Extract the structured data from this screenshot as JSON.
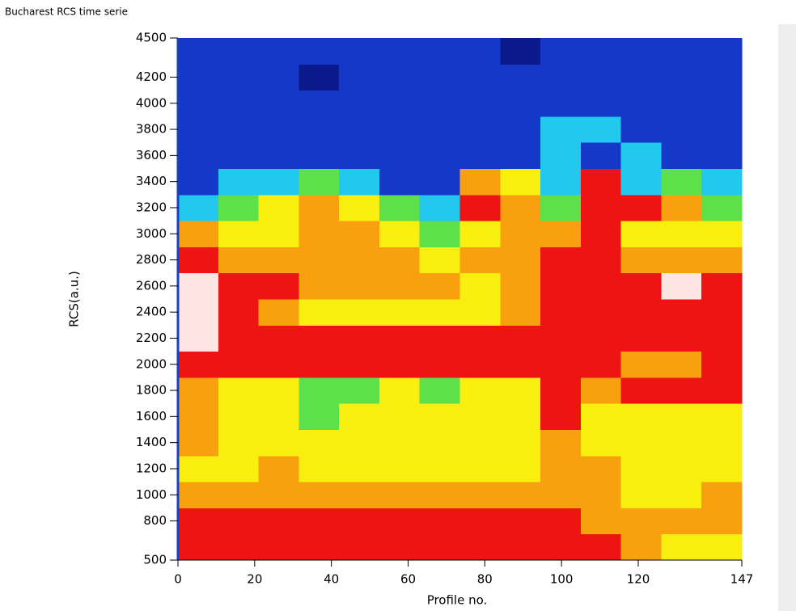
{
  "chart_data": {
    "type": "heatmap",
    "title": "Bucharest RCS time serie",
    "x_label": "Profile no.",
    "y_label": "RCS(a.u.)",
    "xlim": [
      0,
      147
    ],
    "xticks": [
      0,
      20,
      40,
      60,
      80,
      100,
      120,
      147
    ],
    "ylim": [
      500,
      4500
    ],
    "yticks": [
      500,
      800,
      1000,
      1200,
      1400,
      1600,
      1800,
      2000,
      2200,
      2400,
      2600,
      2800,
      3000,
      3200,
      3400,
      3600,
      3800,
      4000,
      4200,
      4500
    ],
    "xbins": [
      0,
      10.5,
      21,
      31.5,
      42,
      52.5,
      63,
      73.5,
      84,
      94.5,
      105,
      115.5,
      126,
      136.5,
      147
    ],
    "ybins": [
      500,
      700,
      900,
      1100,
      1300,
      1500,
      1700,
      1900,
      2100,
      2300,
      2500,
      2700,
      2900,
      3100,
      3300,
      3500,
      3700,
      3900,
      4100,
      4300,
      4500
    ],
    "colorscale": [
      "#0a1a8c",
      "#1438c8",
      "#22c8ee",
      "#5ee04a",
      "#f8ee10",
      "#f8a010",
      "#ee1414",
      "#ffe4e4"
    ],
    "z": [
      [
        6,
        6,
        6,
        6,
        6,
        6,
        6,
        6,
        6,
        6,
        6,
        5,
        4,
        4
      ],
      [
        6,
        6,
        6,
        6,
        6,
        6,
        6,
        6,
        6,
        6,
        5,
        5,
        5,
        5
      ],
      [
        5,
        5,
        5,
        5,
        5,
        5,
        5,
        5,
        5,
        5,
        5,
        4,
        4,
        5
      ],
      [
        4,
        4,
        5,
        4,
        4,
        4,
        4,
        4,
        4,
        5,
        5,
        4,
        4,
        4
      ],
      [
        5,
        4,
        4,
        4,
        4,
        4,
        4,
        4,
        4,
        5,
        4,
        4,
        4,
        4
      ],
      [
        5,
        4,
        4,
        3,
        4,
        4,
        4,
        4,
        4,
        6,
        4,
        4,
        4,
        4
      ],
      [
        5,
        4,
        4,
        3,
        3,
        4,
        3,
        4,
        4,
        6,
        5,
        6,
        6,
        6
      ],
      [
        6,
        6,
        6,
        6,
        6,
        6,
        6,
        6,
        6,
        6,
        6,
        5,
        5,
        6
      ],
      [
        7,
        6,
        6,
        6,
        6,
        6,
        6,
        6,
        6,
        6,
        6,
        6,
        6,
        6
      ],
      [
        7,
        6,
        5,
        4,
        4,
        4,
        4,
        4,
        5,
        6,
        6,
        6,
        6,
        6
      ],
      [
        7,
        6,
        6,
        5,
        5,
        5,
        5,
        4,
        5,
        6,
        6,
        6,
        7,
        6
      ],
      [
        6,
        5,
        5,
        5,
        5,
        5,
        4,
        5,
        5,
        6,
        6,
        5,
        5,
        5
      ],
      [
        5,
        4,
        4,
        5,
        5,
        4,
        3,
        4,
        5,
        5,
        6,
        4,
        4,
        4
      ],
      [
        2,
        3,
        4,
        5,
        4,
        3,
        2,
        6,
        5,
        3,
        6,
        6,
        5,
        3
      ],
      [
        1,
        2,
        2,
        3,
        2,
        1,
        1,
        5,
        4,
        2,
        6,
        2,
        3,
        2
      ],
      [
        1,
        1,
        1,
        1,
        1,
        1,
        1,
        1,
        1,
        2,
        1,
        2,
        1,
        1
      ],
      [
        1,
        1,
        1,
        1,
        1,
        1,
        1,
        1,
        1,
        2,
        2,
        1,
        1,
        1
      ],
      [
        1,
        1,
        1,
        1,
        1,
        1,
        1,
        1,
        1,
        1,
        1,
        1,
        1,
        1
      ],
      [
        1,
        1,
        1,
        0,
        1,
        1,
        1,
        1,
        1,
        1,
        1,
        1,
        1,
        1
      ],
      [
        1,
        1,
        1,
        1,
        1,
        1,
        1,
        1,
        0,
        1,
        1,
        1,
        1,
        1
      ]
    ]
  }
}
